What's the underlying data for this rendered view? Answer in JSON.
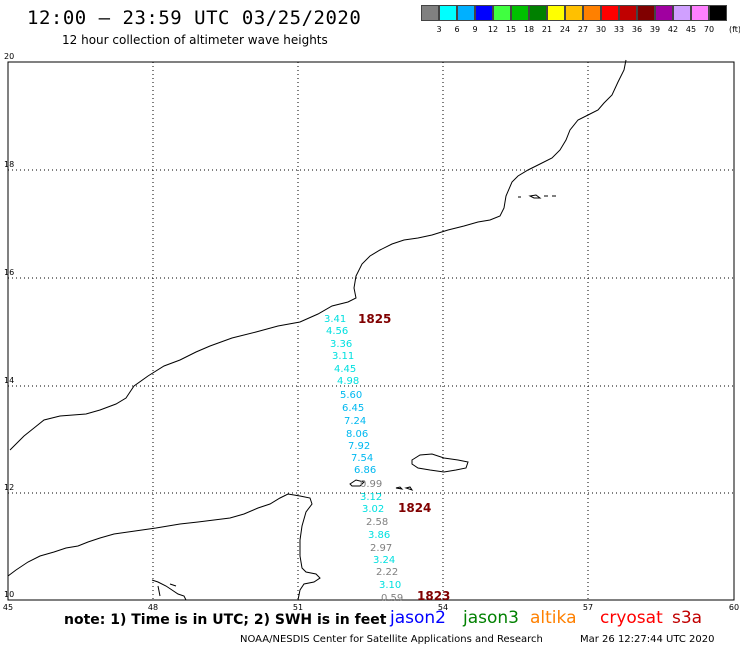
{
  "header": {
    "title": "12:00 – 23:59 UTC 03/25/2020",
    "subtitle": "12 hour collection of altimeter wave heights"
  },
  "legend": {
    "unit": "(ft)",
    "bins": [
      {
        "label": "3",
        "color": "#808080"
      },
      {
        "label": "6",
        "color": "#00ffff"
      },
      {
        "label": "9",
        "color": "#00b0ff"
      },
      {
        "label": "12",
        "color": "#0000ff"
      },
      {
        "label": "15",
        "color": "#40ff40"
      },
      {
        "label": "18",
        "color": "#00c000"
      },
      {
        "label": "21",
        "color": "#008000"
      },
      {
        "label": "24",
        "color": "#ffff00"
      },
      {
        "label": "27",
        "color": "#ffc000"
      },
      {
        "label": "30",
        "color": "#ff8000"
      },
      {
        "label": "33",
        "color": "#ff0000"
      },
      {
        "label": "36",
        "color": "#c00000"
      },
      {
        "label": "39",
        "color": "#800000"
      },
      {
        "label": "42",
        "color": "#a000a0"
      },
      {
        "label": "45",
        "color": "#d0a0ff"
      },
      {
        "label": "70",
        "color": "#ff80ff"
      },
      {
        "label": "",
        "color": "#000000"
      }
    ]
  },
  "axes": {
    "lon_ticks": [
      "45",
      "48",
      "51",
      "54",
      "57",
      "60"
    ],
    "lat_ticks": [
      "20",
      "18",
      "16",
      "14",
      "12",
      "10"
    ]
  },
  "track": {
    "times": [
      "1825",
      "1824",
      "1823"
    ],
    "time_color": "#800000",
    "values": [
      {
        "v": "3.41",
        "c": "#00e0e0"
      },
      {
        "v": "4.56",
        "c": "#00e0e0"
      },
      {
        "v": "3.36",
        "c": "#00e0e0"
      },
      {
        "v": "3.11",
        "c": "#00e0e0"
      },
      {
        "v": "4.45",
        "c": "#00e0e0"
      },
      {
        "v": "4.98",
        "c": "#00e0e0"
      },
      {
        "v": "5.60",
        "c": "#00b8f0"
      },
      {
        "v": "6.45",
        "c": "#00b8f0"
      },
      {
        "v": "7.24",
        "c": "#00b8f0"
      },
      {
        "v": "8.06",
        "c": "#00b8f0"
      },
      {
        "v": "7.92",
        "c": "#00b8f0"
      },
      {
        "v": "7.54",
        "c": "#00b8f0"
      },
      {
        "v": "6.86",
        "c": "#00b8f0"
      },
      {
        "v": "0.99",
        "c": "#808080"
      },
      {
        "v": "3.12",
        "c": "#00e0e0"
      },
      {
        "v": "3.02",
        "c": "#00e0e0"
      },
      {
        "v": "2.58",
        "c": "#808080"
      },
      {
        "v": "3.86",
        "c": "#00e0e0"
      },
      {
        "v": "2.97",
        "c": "#808080"
      },
      {
        "v": "3.24",
        "c": "#00e0e0"
      },
      {
        "v": "2.22",
        "c": "#808080"
      },
      {
        "v": "3.10",
        "c": "#00e0e0"
      },
      {
        "v": "0.59",
        "c": "#808080"
      }
    ]
  },
  "footer": {
    "note": "note: 1) Time is in UTC; 2) SWH is in feet",
    "satellites": [
      {
        "name": "jason2",
        "color": "#0000ff"
      },
      {
        "name": "jason3",
        "color": "#008000"
      },
      {
        "name": "altika",
        "color": "#ff8000"
      },
      {
        "name": "cryosat",
        "color": "#ff0000"
      },
      {
        "name": "s3a",
        "color": "#c00000"
      }
    ],
    "credit": "NOAA/NESDIS Center for Satellite Applications and Research",
    "timestamp": "Mar 26 12:27:44 UTC 2020"
  }
}
